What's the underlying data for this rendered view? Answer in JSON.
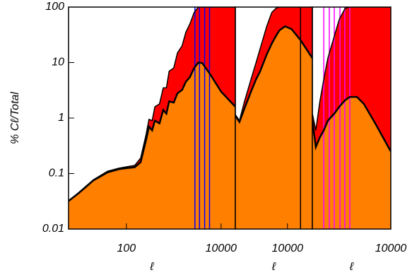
{
  "chart_data": [
    {
      "type": "area",
      "ylabel": "% Cℓ/Total",
      "xlabel": "ℓ",
      "log_x": true,
      "log_y": true,
      "xlim": [
        6,
        20000
      ],
      "xticks": [
        100,
        10000
      ],
      "ylim": [
        0.01,
        100
      ],
      "yticks": [
        0.01,
        0.1,
        1,
        10,
        100
      ],
      "x": [
        6,
        10,
        20,
        40,
        70,
        100,
        150,
        200,
        260,
        300,
        350,
        400,
        500,
        600,
        700,
        800,
        1000,
        1200,
        1500,
        1800,
        2200,
        2700,
        3300,
        4000,
        6000,
        10000,
        20000
      ],
      "series": [
        {
          "color": "#ff0000",
          "values": [
            0.032,
            0.046,
            0.077,
            0.11,
            0.125,
            0.132,
            0.14,
            0.19,
            0.5,
            0.95,
            0.9,
            1.6,
            1.8,
            3.5,
            3.5,
            7,
            8,
            15,
            20,
            35,
            50,
            80,
            100,
            100,
            100,
            100,
            100
          ]
        },
        {
          "color": "#ff8000",
          "values": [
            0.032,
            0.045,
            0.075,
            0.105,
            0.12,
            0.125,
            0.13,
            0.16,
            0.4,
            0.7,
            0.6,
            0.9,
            0.8,
            1.4,
            1.2,
            2.0,
            1.9,
            2.8,
            3.2,
            4.5,
            5.5,
            8,
            10,
            9.8,
            6,
            3,
            1.6
          ]
        }
      ],
      "markers": {
        "color": "#0000ff",
        "x": [
          2800,
          3500,
          4500,
          5700
        ]
      }
    },
    {
      "type": "area",
      "xlabel": "ℓ",
      "log_x": true,
      "log_y": true,
      "xlim": [
        1000,
        30000
      ],
      "xticks": [
        10000
      ],
      "ylim": [
        0.01,
        100
      ],
      "x": [
        1000,
        1200,
        1500,
        2000,
        2500,
        3000,
        4000,
        5000,
        6000,
        7000,
        9000,
        12000,
        18000,
        30000
      ],
      "series": [
        {
          "color": "#ff0000",
          "values": [
            1.15,
            0.9,
            2,
            5,
            10,
            18,
            45,
            80,
            95,
            100,
            100,
            100,
            100,
            100
          ]
        },
        {
          "color": "#ff8000",
          "values": [
            1.1,
            0.85,
            1.5,
            3,
            5,
            7,
            14,
            22,
            30,
            38,
            45,
            40,
            25,
            12
          ]
        }
      ],
      "markers": {
        "color": "#000000",
        "x": [
          17800
        ]
      }
    },
    {
      "type": "area",
      "xlabel": "ℓ",
      "log_x": true,
      "log_y": true,
      "xlim": [
        300,
        10000
      ],
      "xticks": [
        10000
      ],
      "ylim": [
        0.01,
        100
      ],
      "x": [
        300,
        350,
        420,
        500,
        600,
        800,
        1000,
        1300,
        1600,
        2200,
        3000,
        5000,
        10000
      ],
      "series": [
        {
          "color": "#ff0000",
          "values": [
            1.2,
            0.6,
            2,
            5,
            12,
            30,
            60,
            95,
            100,
            100,
            100,
            100,
            100
          ]
        },
        {
          "color": "#ff8000",
          "values": [
            0.9,
            0.3,
            0.45,
            0.6,
            0.9,
            1.2,
            1.6,
            2.1,
            2.4,
            2.4,
            1.8,
            0.8,
            0.25
          ]
        }
      ],
      "markers": {
        "color": "#ff00ff",
        "x": [
          500,
          640,
          800,
          1030,
          1280,
          1600
        ]
      }
    }
  ]
}
